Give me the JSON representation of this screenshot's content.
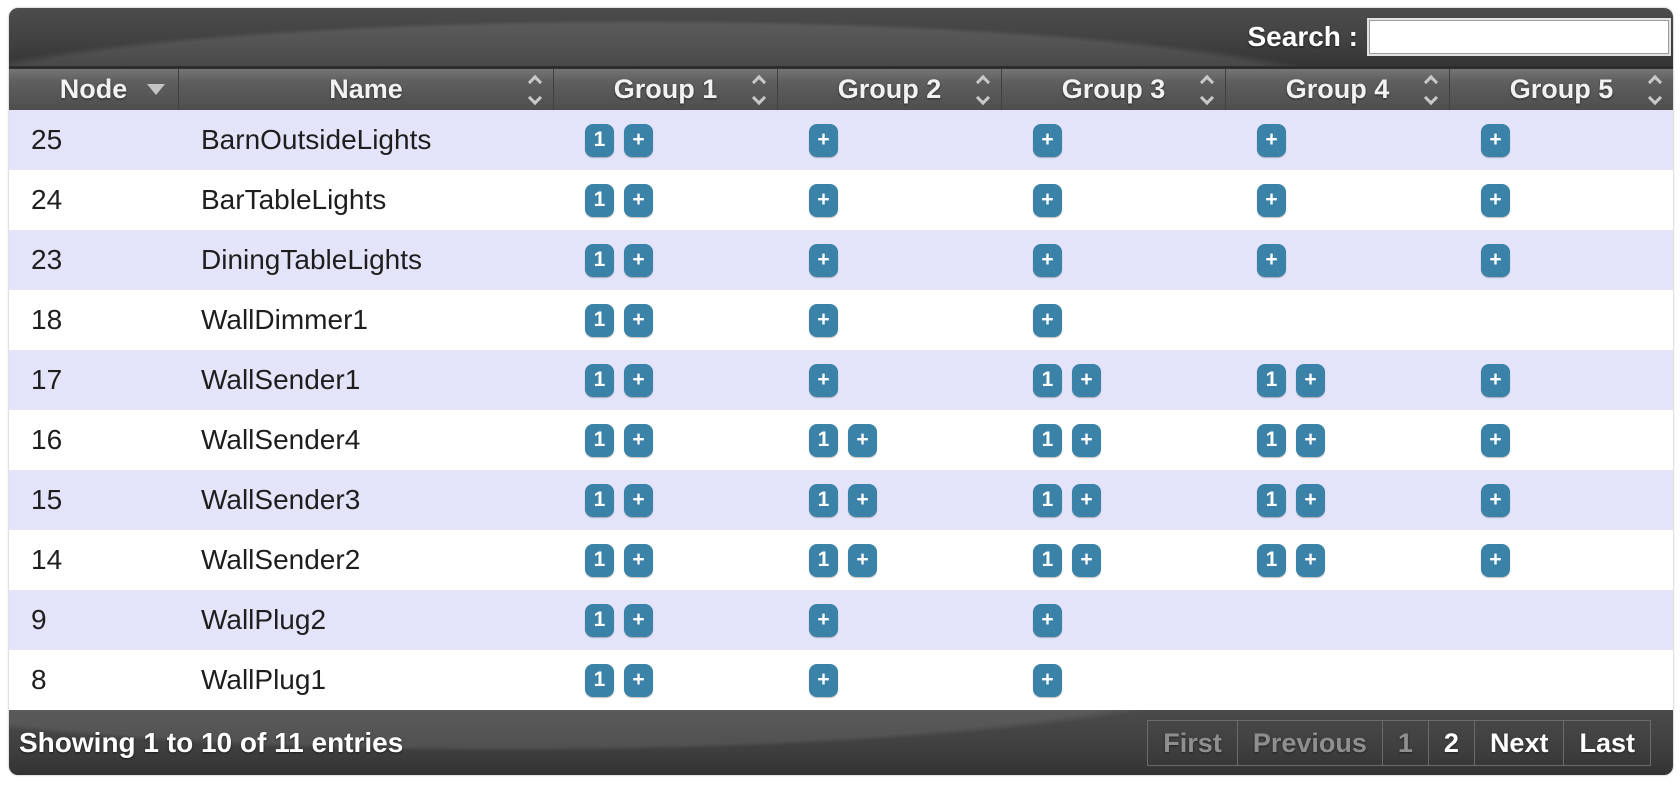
{
  "colors": {
    "button-teal": "#3a82a8",
    "row-alt": "#e3e3f9",
    "bar-dark": "#424242",
    "header-gray": "#5f5f5f"
  },
  "search": {
    "label": "Search :",
    "value": "",
    "placeholder": ""
  },
  "table": {
    "headers": [
      {
        "label": "Node",
        "sort": "desc"
      },
      {
        "label": "Name",
        "sort": "both"
      },
      {
        "label": "Group 1",
        "sort": "both"
      },
      {
        "label": "Group 2",
        "sort": "both"
      },
      {
        "label": "Group 3",
        "sort": "both"
      },
      {
        "label": "Group 4",
        "sort": "both"
      },
      {
        "label": "Group 5",
        "sort": "both"
      }
    ],
    "rows": [
      {
        "node": "25",
        "name": "BarnOutsideLights",
        "groups": [
          [
            "1",
            "+"
          ],
          [
            "+"
          ],
          [
            "+"
          ],
          [
            "+"
          ],
          [
            "+"
          ]
        ]
      },
      {
        "node": "24",
        "name": "BarTableLights",
        "groups": [
          [
            "1",
            "+"
          ],
          [
            "+"
          ],
          [
            "+"
          ],
          [
            "+"
          ],
          [
            "+"
          ]
        ]
      },
      {
        "node": "23",
        "name": "DiningTableLights",
        "groups": [
          [
            "1",
            "+"
          ],
          [
            "+"
          ],
          [
            "+"
          ],
          [
            "+"
          ],
          [
            "+"
          ]
        ]
      },
      {
        "node": "18",
        "name": "WallDimmer1",
        "groups": [
          [
            "1",
            "+"
          ],
          [
            "+"
          ],
          [
            "+"
          ],
          [],
          []
        ]
      },
      {
        "node": "17",
        "name": "WallSender1",
        "groups": [
          [
            "1",
            "+"
          ],
          [
            "+"
          ],
          [
            "1",
            "+"
          ],
          [
            "1",
            "+"
          ],
          [
            "+"
          ]
        ]
      },
      {
        "node": "16",
        "name": "WallSender4",
        "groups": [
          [
            "1",
            "+"
          ],
          [
            "1",
            "+"
          ],
          [
            "1",
            "+"
          ],
          [
            "1",
            "+"
          ],
          [
            "+"
          ]
        ]
      },
      {
        "node": "15",
        "name": "WallSender3",
        "groups": [
          [
            "1",
            "+"
          ],
          [
            "1",
            "+"
          ],
          [
            "1",
            "+"
          ],
          [
            "1",
            "+"
          ],
          [
            "+"
          ]
        ]
      },
      {
        "node": "14",
        "name": "WallSender2",
        "groups": [
          [
            "1",
            "+"
          ],
          [
            "1",
            "+"
          ],
          [
            "1",
            "+"
          ],
          [
            "1",
            "+"
          ],
          [
            "+"
          ]
        ]
      },
      {
        "node": "9",
        "name": "WallPlug2",
        "groups": [
          [
            "1",
            "+"
          ],
          [
            "+"
          ],
          [
            "+"
          ],
          [],
          []
        ]
      },
      {
        "node": "8",
        "name": "WallPlug1",
        "groups": [
          [
            "1",
            "+"
          ],
          [
            "+"
          ],
          [
            "+"
          ],
          [],
          []
        ]
      }
    ]
  },
  "footer": {
    "status": "Showing 1 to 10 of 11 entries",
    "pagination": [
      {
        "label": "First",
        "state": "disabled"
      },
      {
        "label": "Previous",
        "state": "disabled"
      },
      {
        "label": "1",
        "state": "current"
      },
      {
        "label": "2",
        "state": "active"
      },
      {
        "label": "Next",
        "state": "active"
      },
      {
        "label": "Last",
        "state": "active"
      }
    ]
  }
}
